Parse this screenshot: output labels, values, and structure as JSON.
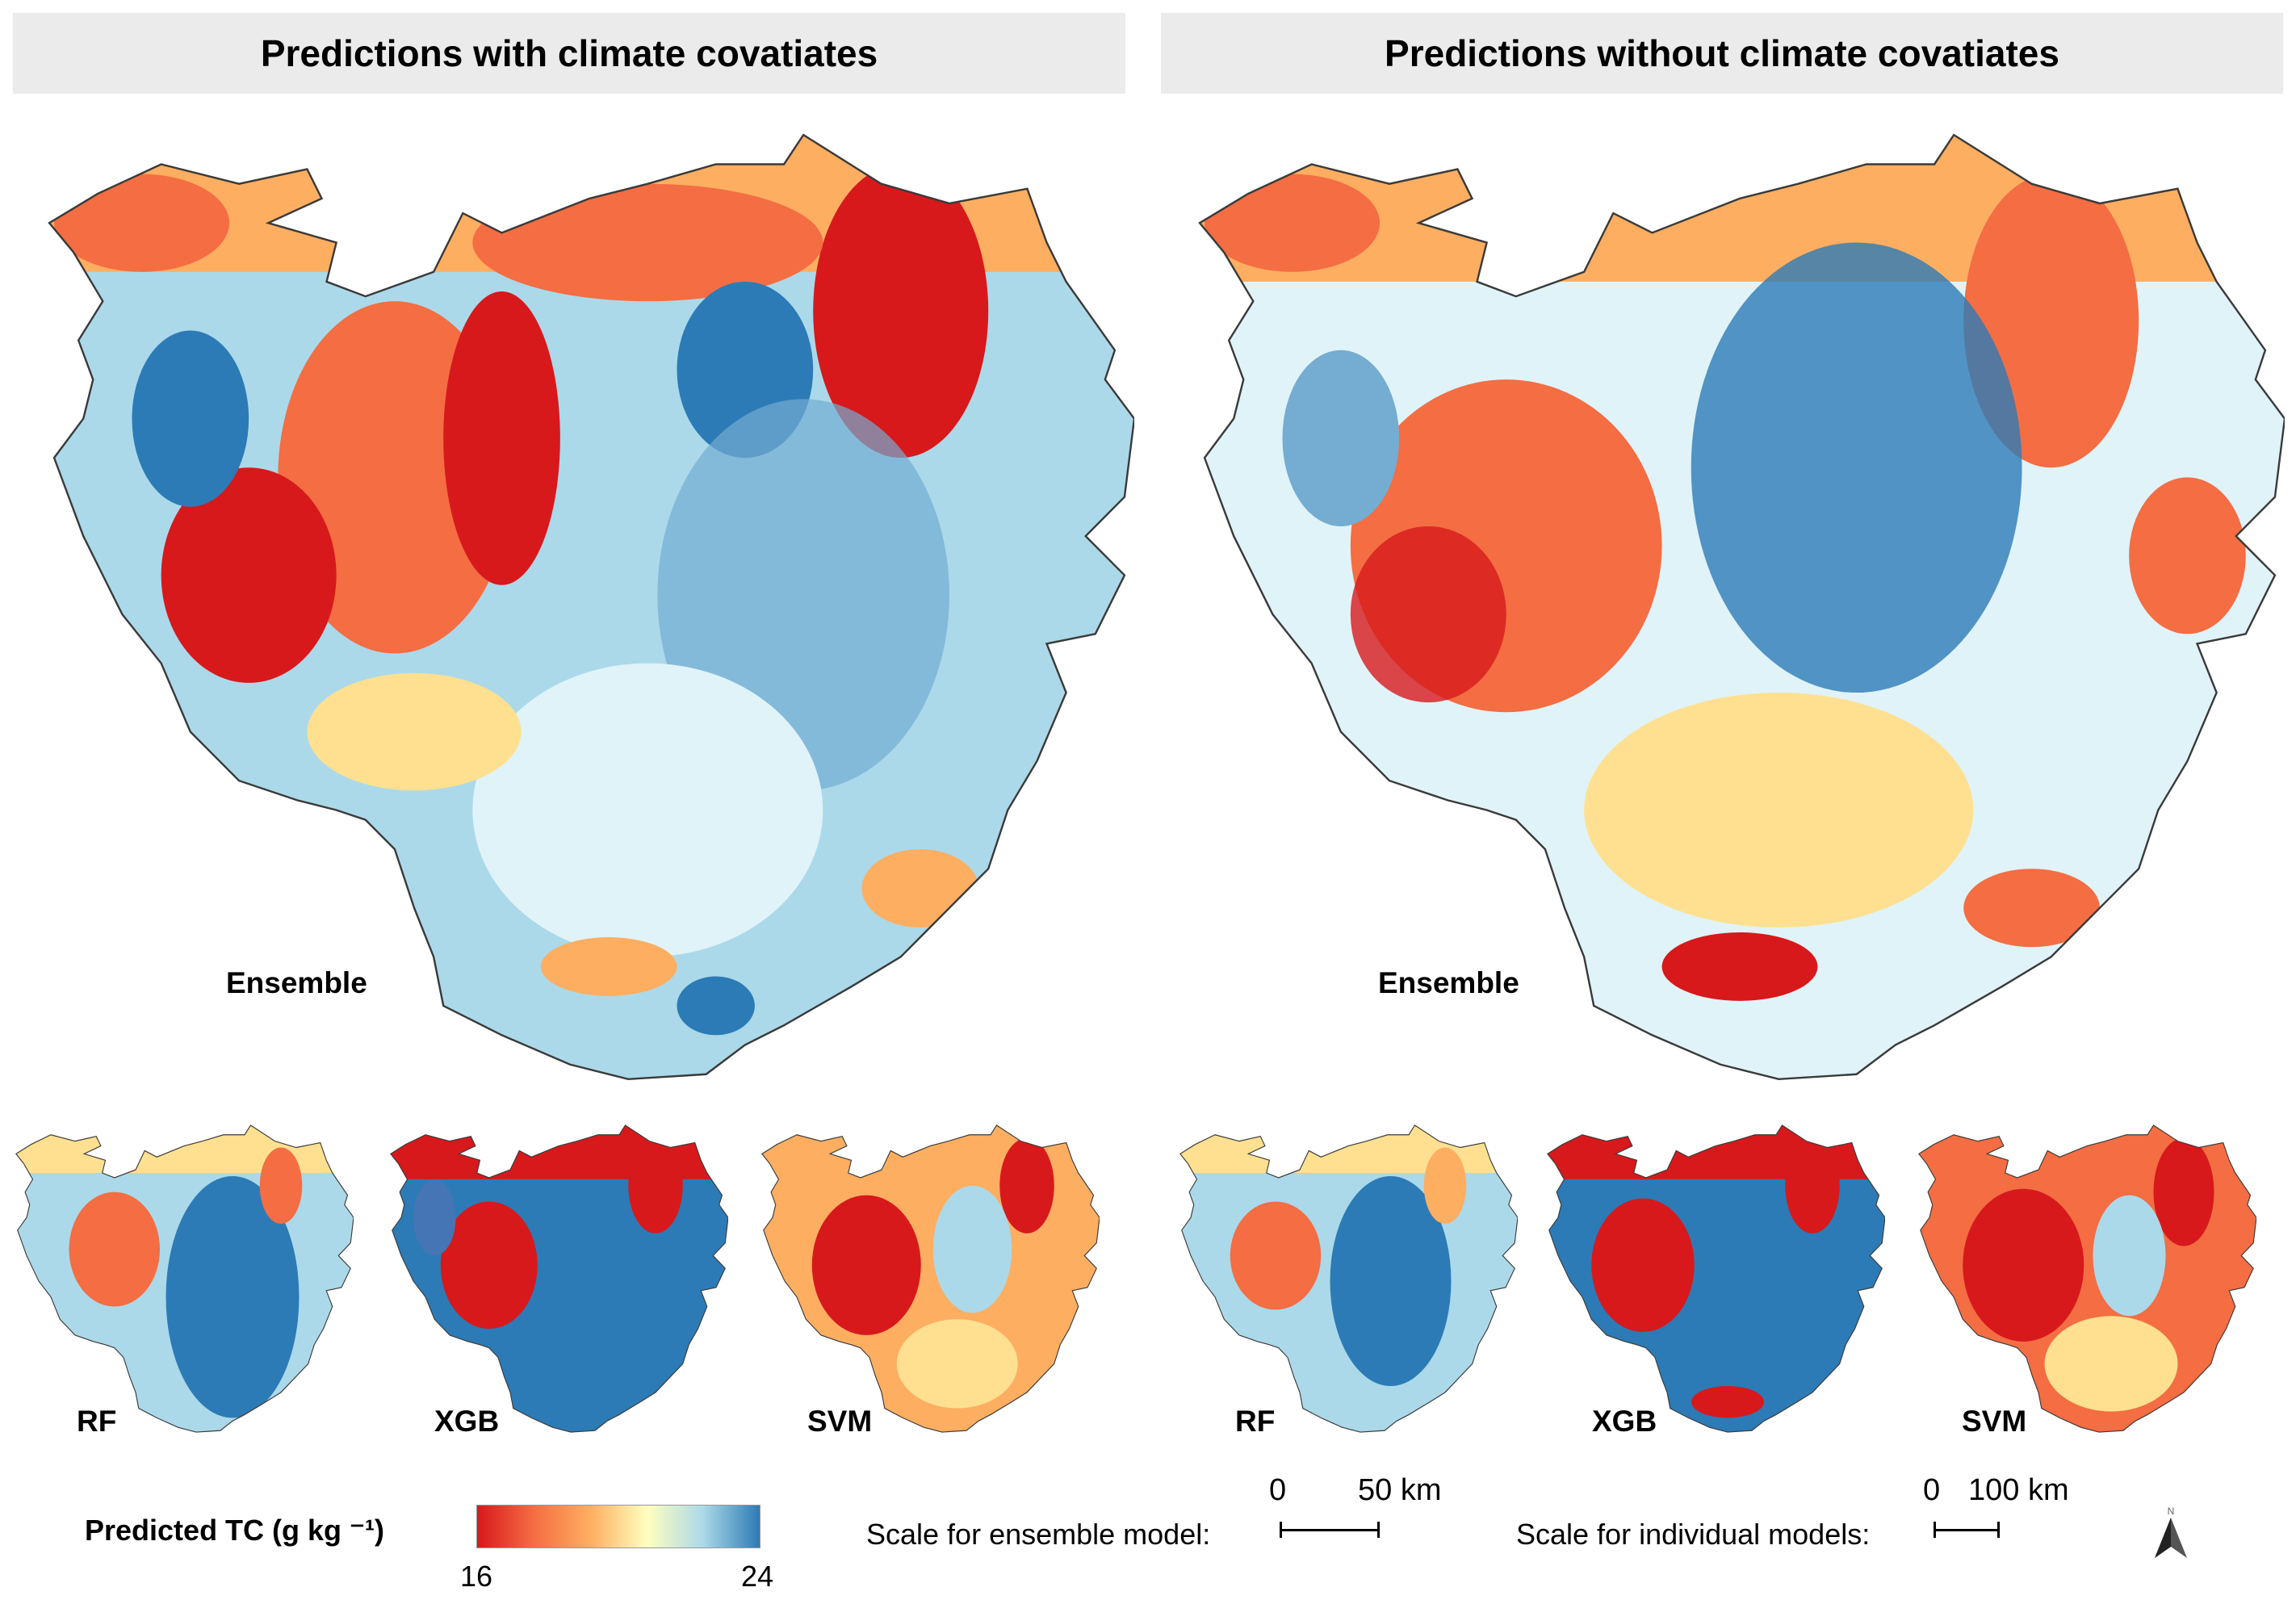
{
  "headers": {
    "left": "Predictions with climate covatiates",
    "right": "Predictions without climate covatiates"
  },
  "panels": {
    "left": {
      "ensemble": "Ensemble",
      "rf": "RF",
      "xgb": "XGB",
      "svm": "SVM"
    },
    "right": {
      "ensemble": "Ensemble",
      "rf": "RF",
      "xgb": "XGB",
      "svm": "SVM"
    }
  },
  "legend": {
    "title": "Predicted TC (g kg ⁻¹)",
    "min": "16",
    "max": "24",
    "colors": [
      "#d7191c",
      "#f46d43",
      "#fdae61",
      "#ffffbf",
      "#abd9e9",
      "#2c7bb6"
    ]
  },
  "scale_ensemble": {
    "label": "Scale for ensemble model:",
    "zero": "0",
    "end": "50 km"
  },
  "scale_individual": {
    "label": "Scale for individual models:",
    "zero": "0",
    "end": "100 km"
  },
  "north": {
    "letter": "N"
  },
  "map_colors": {
    "red": "#d7191c",
    "orange": "#f46d43",
    "yellow": "#fee090",
    "light": "#e0f3f8",
    "blue": "#2c7bb6",
    "outline": "#3a3a3a"
  }
}
